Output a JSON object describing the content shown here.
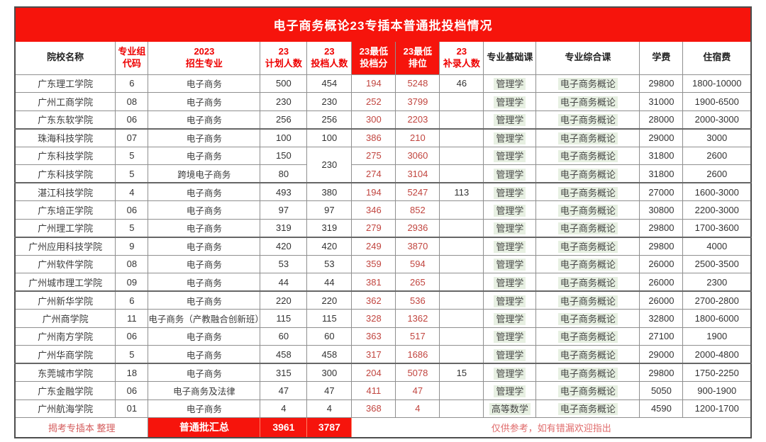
{
  "title": "电子商务概论23专插本普通批投档情况",
  "colors": {
    "banner_red": "#f6140c",
    "header_red_text": "#ee0000",
    "score_red_text": "#c1453f",
    "course_highlight_green": "#e7f0e2",
    "source_note_red": "#d45c5c",
    "disclaimer_red": "#e06b6b",
    "grid_line": "#8f8f8f"
  },
  "header": {
    "columns": [
      {
        "key": "school",
        "label": "院校名称",
        "style": "hdr-dark"
      },
      {
        "key": "group-code",
        "label": "专业组\n代码",
        "style": "hdr-red"
      },
      {
        "key": "major-2023",
        "label": "2023\n招生专业",
        "style": "hdr-red"
      },
      {
        "key": "planned-23",
        "label": "23\n计划人数",
        "style": "hdr-red"
      },
      {
        "key": "filed-23",
        "label": "23\n投档人数",
        "style": "hdr-red"
      },
      {
        "key": "min-score-23",
        "label": "23最低\n投档分",
        "style": "hdr-redbg"
      },
      {
        "key": "min-rank-23",
        "label": "23最低\n排位",
        "style": "hdr-redbg"
      },
      {
        "key": "supplement-23",
        "label": "23\n补录人数",
        "style": "hdr-red"
      },
      {
        "key": "basic-course",
        "label": "专业基础课",
        "style": "hdr-dark"
      },
      {
        "key": "comprehensive-course",
        "label": "专业综合课",
        "style": "hdr-dark"
      },
      {
        "key": "tuition",
        "label": "学费",
        "style": "hdr-dark"
      },
      {
        "key": "accommodation",
        "label": "住宿费",
        "style": "hdr-dark"
      }
    ]
  },
  "table": {
    "thick_top_rows": [
      3,
      6,
      9,
      12,
      16
    ],
    "rows": [
      [
        "广东理工学院",
        "6",
        "电子商务",
        "500",
        "454",
        "194",
        "5248",
        "46",
        "管理学",
        "电子商务概论",
        "29800",
        "1800-10000"
      ],
      [
        "广州工商学院",
        "08",
        "电子商务",
        "230",
        "230",
        "252",
        "3799",
        "",
        "管理学",
        "电子商务概论",
        "31000",
        "1900-6500"
      ],
      [
        "广东东软学院",
        "06",
        "电子商务",
        "256",
        "256",
        "300",
        "2203",
        "",
        "管理学",
        "电子商务概论",
        "28000",
        "2000-3000"
      ],
      [
        "珠海科技学院",
        "07",
        "电子商务",
        "100",
        "100",
        "386",
        "210",
        "",
        "管理学",
        "电子商务概论",
        "29000",
        "3000"
      ],
      [
        "广东科技学院",
        "5",
        "电子商务",
        "150",
        "230",
        "275",
        "3060",
        "",
        "管理学",
        "电子商务概论",
        "31800",
        "2600"
      ],
      [
        "广东科技学院",
        "5",
        "跨境电子商务",
        "80",
        null,
        "274",
        "3104",
        "",
        "管理学",
        "电子商务概论",
        "31800",
        "2600"
      ],
      [
        "湛江科技学院",
        "4",
        "电子商务",
        "493",
        "380",
        "194",
        "5247",
        "113",
        "管理学",
        "电子商务概论",
        "27000",
        "1600-3000"
      ],
      [
        "广东培正学院",
        "06",
        "电子商务",
        "97",
        "97",
        "346",
        "852",
        "",
        "管理学",
        "电子商务概论",
        "30800",
        "2200-3000"
      ],
      [
        "广州理工学院",
        "5",
        "电子商务",
        "319",
        "319",
        "279",
        "2936",
        "",
        "管理学",
        "电子商务概论",
        "29800",
        "1700-3600"
      ],
      [
        "广州应用科技学院",
        "9",
        "电子商务",
        "420",
        "420",
        "249",
        "3870",
        "",
        "管理学",
        "电子商务概论",
        "29800",
        "4000"
      ],
      [
        "广州软件学院",
        "08",
        "电子商务",
        "53",
        "53",
        "359",
        "594",
        "",
        "管理学",
        "电子商务概论",
        "26000",
        "2500-3500"
      ],
      [
        "广州城市理工学院",
        "09",
        "电子商务",
        "44",
        "44",
        "381",
        "265",
        "",
        "管理学",
        "电子商务概论",
        "26000",
        "2300"
      ],
      [
        "广州新华学院",
        "6",
        "电子商务",
        "220",
        "220",
        "362",
        "536",
        "",
        "管理学",
        "电子商务概论",
        "26000",
        "2700-2800"
      ],
      [
        "广州商学院",
        "11",
        "电子商务（产教融合创新班）",
        "115",
        "115",
        "328",
        "1362",
        "",
        "管理学",
        "电子商务概论",
        "32800",
        "1800-6000"
      ],
      [
        "广州南方学院",
        "06",
        "电子商务",
        "60",
        "60",
        "363",
        "517",
        "",
        "管理学",
        "电子商务概论",
        "27100",
        "1900"
      ],
      [
        "广州华商学院",
        "5",
        "电子商务",
        "458",
        "458",
        "317",
        "1686",
        "",
        "管理学",
        "电子商务概论",
        "29000",
        "2000-4800"
      ],
      [
        "东莞城市学院",
        "18",
        "电子商务",
        "315",
        "300",
        "204",
        "5078",
        "15",
        "管理学",
        "电子商务概论",
        "29800",
        "1750-2250"
      ],
      [
        "广东金融学院",
        "06",
        "电子商务及法律",
        "47",
        "47",
        "411",
        "47",
        "",
        "管理学",
        "电子商务概论",
        "5050",
        "900-1900"
      ],
      [
        "广州航海学院",
        "01",
        "电子商务",
        "4",
        "4",
        "368",
        "4",
        "",
        "高等数学",
        "电子商务概论",
        "4590",
        "1200-1700"
      ]
    ]
  },
  "footer": {
    "source_note": "揭考专插本 整理",
    "summary_label": "普通批汇总",
    "total_planned": "3961",
    "total_filed": "3787",
    "disclaimer": "仅供参考，如有错漏欢迎指出"
  }
}
